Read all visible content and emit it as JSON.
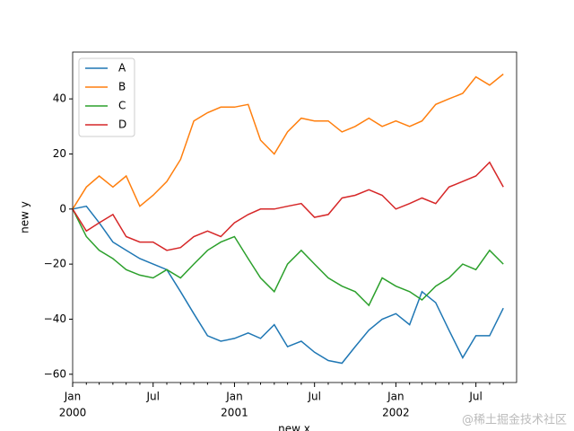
{
  "chart_data": {
    "type": "line",
    "xlabel": "new x",
    "ylabel": "new y",
    "x": [
      "2000-01",
      "2000-02",
      "2000-03",
      "2000-04",
      "2000-05",
      "2000-06",
      "2000-07",
      "2000-08",
      "2000-09",
      "2000-10",
      "2000-11",
      "2000-12",
      "2001-01",
      "2001-02",
      "2001-03",
      "2001-04",
      "2001-05",
      "2001-06",
      "2001-07",
      "2001-08",
      "2001-09",
      "2001-10",
      "2001-11",
      "2001-12",
      "2002-01",
      "2002-02",
      "2002-03",
      "2002-04",
      "2002-05",
      "2002-06",
      "2002-07",
      "2002-08",
      "2002-09"
    ],
    "series": [
      {
        "name": "A",
        "color": "#1f77b4",
        "values": [
          0,
          1,
          -5,
          -12,
          -15,
          -18,
          -20,
          -22,
          -30,
          -38,
          -46,
          -48,
          -47,
          -45,
          -47,
          -42,
          -50,
          -48,
          -52,
          -55,
          -56,
          -50,
          -44,
          -40,
          -38,
          -42,
          -30,
          -34,
          -44,
          -54,
          -46,
          -46,
          -36
        ]
      },
      {
        "name": "B",
        "color": "#ff7f0e",
        "values": [
          0,
          8,
          12,
          8,
          12,
          1,
          5,
          10,
          18,
          32,
          35,
          37,
          37,
          38,
          25,
          20,
          28,
          33,
          32,
          32,
          28,
          30,
          33,
          30,
          32,
          30,
          32,
          38,
          40,
          42,
          48,
          45,
          49
        ]
      },
      {
        "name": "C",
        "color": "#2ca02c",
        "values": [
          0,
          -10,
          -15,
          -18,
          -22,
          -24,
          -25,
          -22,
          -25,
          -20,
          -15,
          -12,
          -10,
          -18,
          -25,
          -30,
          -20,
          -15,
          -20,
          -25,
          -28,
          -30,
          -35,
          -25,
          -28,
          -30,
          -33,
          -28,
          -25,
          -20,
          -22,
          -15,
          -20
        ]
      },
      {
        "name": "D",
        "color": "#d62728",
        "values": [
          0,
          -8,
          -5,
          -2,
          -10,
          -12,
          -12,
          -15,
          -14,
          -10,
          -8,
          -10,
          -5,
          -2,
          0,
          0,
          1,
          2,
          -3,
          -2,
          4,
          5,
          7,
          5,
          0,
          2,
          4,
          2,
          8,
          10,
          12,
          17,
          8
        ]
      }
    ],
    "xlim": [
      "2000-01",
      "2002-10"
    ],
    "xticks": [
      {
        "value": "2000-01",
        "label": [
          "Jan",
          "2000"
        ]
      },
      {
        "value": "2000-07",
        "label": [
          "Jul"
        ]
      },
      {
        "value": "2001-01",
        "label": [
          "Jan",
          "2001"
        ]
      },
      {
        "value": "2001-07",
        "label": [
          "Jul"
        ]
      },
      {
        "value": "2002-01",
        "label": [
          "Jan",
          "2002"
        ]
      },
      {
        "value": "2002-07",
        "label": [
          "Jul"
        ]
      }
    ],
    "xminorticks": [
      "2000-02",
      "2000-03",
      "2000-04",
      "2000-05",
      "2000-06",
      "2000-08",
      "2000-09",
      "2000-10",
      "2000-11",
      "2000-12",
      "2001-02",
      "2001-03",
      "2001-04",
      "2001-05",
      "2001-06",
      "2001-08",
      "2001-09",
      "2001-10",
      "2001-11",
      "2001-12",
      "2002-02",
      "2002-03",
      "2002-04",
      "2002-05",
      "2002-06",
      "2002-08",
      "2002-09"
    ],
    "ylim": [
      -63,
      57
    ],
    "yticks": [
      {
        "value": -60,
        "label": "−60"
      },
      {
        "value": -40,
        "label": "−40"
      },
      {
        "value": -20,
        "label": "−20"
      },
      0,
      20,
      40
    ],
    "legend": "upper left",
    "watermark": "@稀土掘金技术社区"
  }
}
